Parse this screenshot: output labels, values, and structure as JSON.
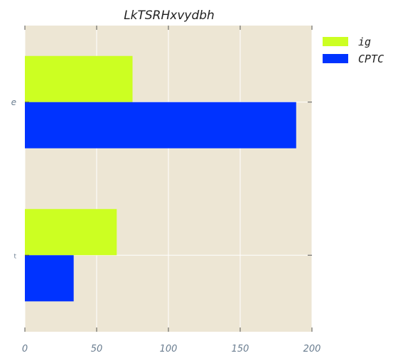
{
  "chart_data": {
    "type": "bar",
    "orientation": "horizontal",
    "title": "LkTSRHxvydbh",
    "xlabel": "",
    "ylabel": "",
    "categories": [
      "e",
      "t"
    ],
    "series": [
      {
        "name": "ig",
        "values": [
          75,
          64
        ]
      },
      {
        "name": "CPTC",
        "values": [
          189,
          34
        ]
      }
    ],
    "xlim": [
      0,
      200
    ],
    "xticks": [
      "0",
      "50",
      "100",
      "150",
      "200"
    ],
    "grid": true,
    "legend_position": "outside-top-right",
    "colors": {
      "ig": "#ccff22",
      "CPTC": "#0033ff",
      "plot_background": "#ede6d4",
      "grid": "#ffffff"
    }
  }
}
